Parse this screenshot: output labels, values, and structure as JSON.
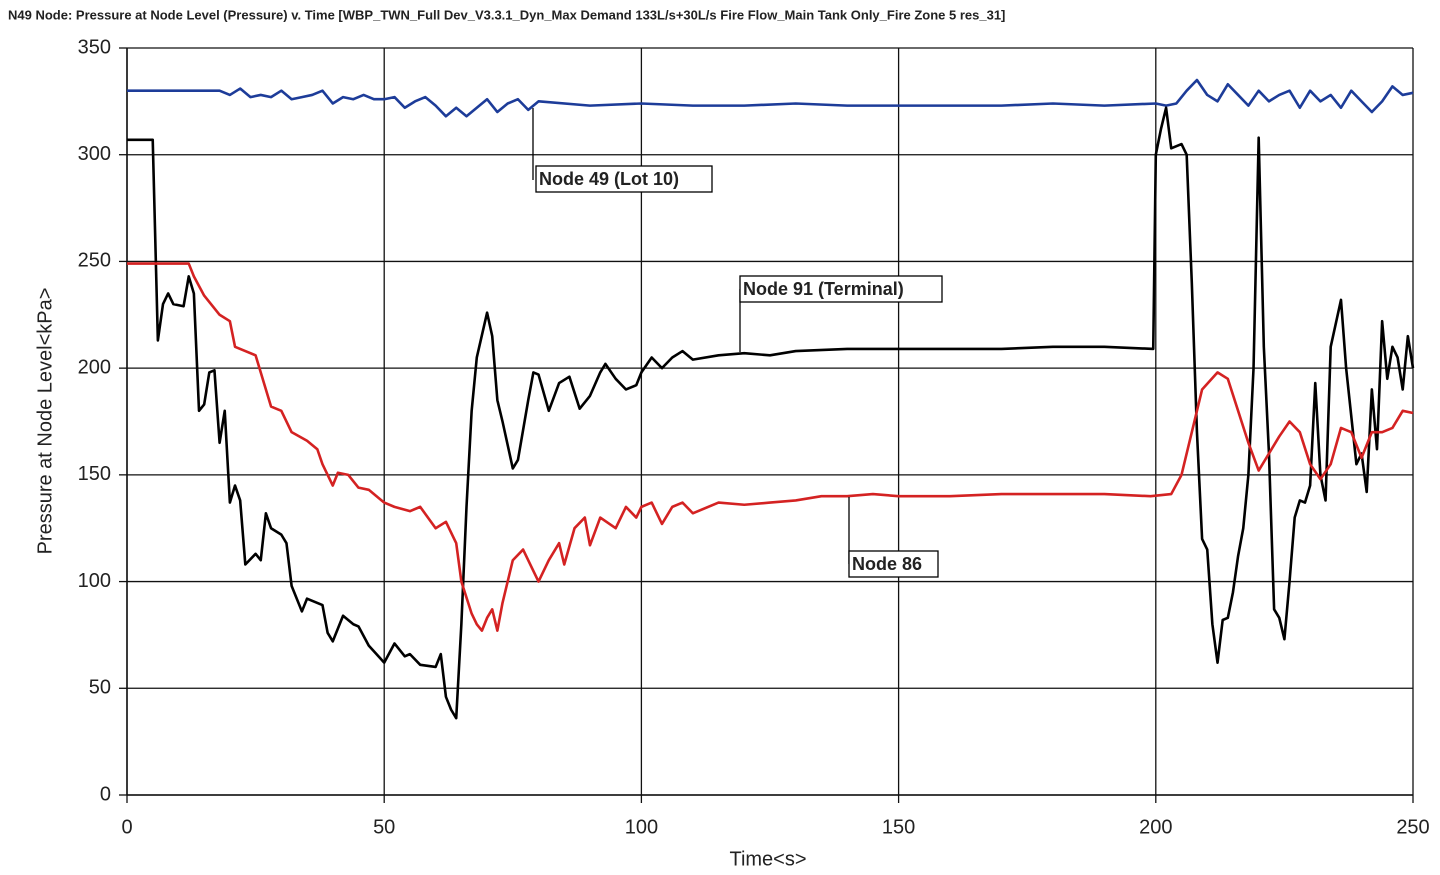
{
  "chart_data": {
    "type": "line",
    "title": "N49 Node: Pressure at Node Level (Pressure) v. Time [WBP_TWN_Full Dev_V3.3.1_Dyn_Max Demand 133L/s+30L/s Fire Flow_Main Tank Only_Fire Zone 5 res_31]",
    "xlabel": "Time<s>",
    "ylabel": "Pressure at Node Level<kPa>",
    "xlim": [
      0,
      250
    ],
    "ylim": [
      0,
      350
    ],
    "xticks": [
      0,
      50,
      100,
      150,
      200,
      250
    ],
    "yticks": [
      0,
      50,
      100,
      150,
      200,
      250,
      300,
      350
    ],
    "grid": true,
    "series": [
      {
        "name": "Node 49 (Lot 10)",
        "color": "#1d3c99",
        "x": [
          0,
          18,
          20,
          22,
          24,
          26,
          28,
          30,
          32,
          34,
          36,
          38,
          40,
          42,
          44,
          46,
          48,
          50,
          52,
          54,
          56,
          58,
          60,
          62,
          64,
          66,
          68,
          70,
          72,
          74,
          76,
          78,
          80,
          90,
          100,
          110,
          120,
          130,
          140,
          150,
          160,
          170,
          180,
          190,
          200,
          202,
          204,
          206,
          208,
          210,
          212,
          214,
          216,
          218,
          220,
          222,
          224,
          226,
          228,
          230,
          232,
          234,
          236,
          238,
          240,
          242,
          244,
          246,
          248,
          250
        ],
        "values": [
          330,
          330,
          328,
          331,
          327,
          328,
          327,
          330,
          326,
          327,
          328,
          330,
          324,
          327,
          326,
          328,
          326,
          326,
          327,
          322,
          325,
          327,
          323,
          318,
          322,
          318,
          322,
          326,
          320,
          324,
          326,
          321,
          325,
          323,
          324,
          323,
          323,
          324,
          323,
          323,
          323,
          323,
          324,
          323,
          324,
          323,
          324,
          330,
          335,
          328,
          325,
          333,
          328,
          323,
          330,
          325,
          328,
          330,
          322,
          330,
          325,
          328,
          322,
          330,
          325,
          320,
          325,
          332,
          328,
          329
        ]
      },
      {
        "name": "Node 91 (Terminal)",
        "color": "#000000",
        "x": [
          0,
          5,
          5.5,
          6,
          7,
          8,
          9,
          11,
          12,
          13,
          14,
          15,
          16,
          17,
          18,
          19,
          20,
          21,
          22,
          23,
          25,
          26,
          27,
          28,
          30,
          31,
          32,
          34,
          35,
          37,
          38,
          39,
          40,
          42,
          44,
          45,
          47,
          50,
          52,
          54,
          55,
          57,
          60,
          61,
          62,
          63,
          64,
          65,
          66,
          67,
          68,
          70,
          71,
          72,
          73,
          75,
          76,
          78,
          79,
          80,
          82,
          84,
          86,
          88,
          90,
          92,
          93,
          95,
          97,
          99,
          100,
          102,
          104,
          106,
          108,
          110,
          115,
          120,
          125,
          130,
          140,
          150,
          160,
          170,
          180,
          190,
          199.5,
          200,
          201,
          202,
          203,
          205,
          206,
          207,
          208,
          209,
          210,
          211,
          212,
          213,
          214,
          215,
          216,
          217,
          218,
          219,
          220,
          221,
          222,
          223,
          224,
          225,
          226,
          227,
          228,
          229,
          230,
          231,
          232,
          233,
          234,
          236,
          237,
          239,
          240,
          241,
          242,
          243,
          244,
          245,
          246,
          247,
          248,
          249,
          250
        ],
        "values": [
          307,
          307,
          260,
          213,
          230,
          235,
          230,
          229,
          243,
          235,
          180,
          183,
          198,
          199,
          165,
          180,
          137,
          145,
          138,
          108,
          113,
          110,
          132,
          125,
          122,
          118,
          98,
          86,
          92,
          90,
          89,
          76,
          72,
          84,
          80,
          79,
          70,
          62,
          71,
          65,
          66,
          61,
          60,
          66,
          46,
          40,
          36,
          80,
          135,
          180,
          205,
          226,
          215,
          185,
          175,
          153,
          157,
          185,
          198,
          197,
          180,
          193,
          196,
          181,
          187,
          198,
          202,
          195,
          190,
          192,
          198,
          205,
          200,
          205,
          208,
          204,
          206,
          207,
          206,
          208,
          209,
          209,
          209,
          209,
          210,
          210,
          209,
          300,
          312,
          322,
          303,
          305,
          300,
          240,
          170,
          120,
          115,
          80,
          62,
          82,
          83,
          95,
          112,
          125,
          150,
          200,
          308,
          210,
          160,
          87,
          83,
          73,
          100,
          130,
          138,
          137,
          145,
          193,
          150,
          138,
          210,
          232,
          200,
          155,
          160,
          142,
          190,
          162,
          222,
          195,
          210,
          205,
          190,
          215,
          200
        ]
      },
      {
        "name": "Node 86",
        "color": "#d42222",
        "x": [
          0,
          12,
          13,
          15,
          18,
          20,
          21,
          23,
          25,
          26,
          28,
          30,
          32,
          35,
          37,
          38,
          40,
          41,
          43,
          45,
          47,
          50,
          52,
          55,
          57,
          60,
          62,
          64,
          65,
          67,
          68,
          69,
          70,
          71,
          72,
          73,
          75,
          77,
          79,
          80,
          82,
          84,
          85,
          87,
          89,
          90,
          92,
          95,
          97,
          99,
          100,
          102,
          104,
          106,
          108,
          110,
          115,
          120,
          125,
          130,
          135,
          140,
          145,
          150,
          160,
          170,
          180,
          190,
          199,
          203,
          205,
          207,
          209,
          212,
          214,
          216,
          218,
          220,
          222,
          224,
          226,
          228,
          230,
          232,
          234,
          236,
          238,
          240,
          242,
          244,
          246,
          248,
          250
        ],
        "values": [
          249,
          249,
          243,
          234,
          225,
          222,
          210,
          208,
          206,
          198,
          182,
          180,
          170,
          166,
          162,
          155,
          145,
          151,
          150,
          144,
          143,
          137,
          135,
          133,
          135,
          125,
          128,
          118,
          100,
          85,
          80,
          77,
          83,
          87,
          77,
          90,
          110,
          115,
          105,
          100,
          110,
          118,
          108,
          125,
          130,
          117,
          130,
          125,
          135,
          130,
          135,
          137,
          127,
          135,
          137,
          132,
          137,
          136,
          137,
          138,
          140,
          140,
          141,
          140,
          140,
          141,
          141,
          141,
          140,
          141,
          150,
          170,
          190,
          198,
          195,
          180,
          165,
          152,
          160,
          168,
          175,
          170,
          155,
          148,
          155,
          172,
          170,
          158,
          170,
          170,
          172,
          180,
          179
        ]
      }
    ]
  }
}
